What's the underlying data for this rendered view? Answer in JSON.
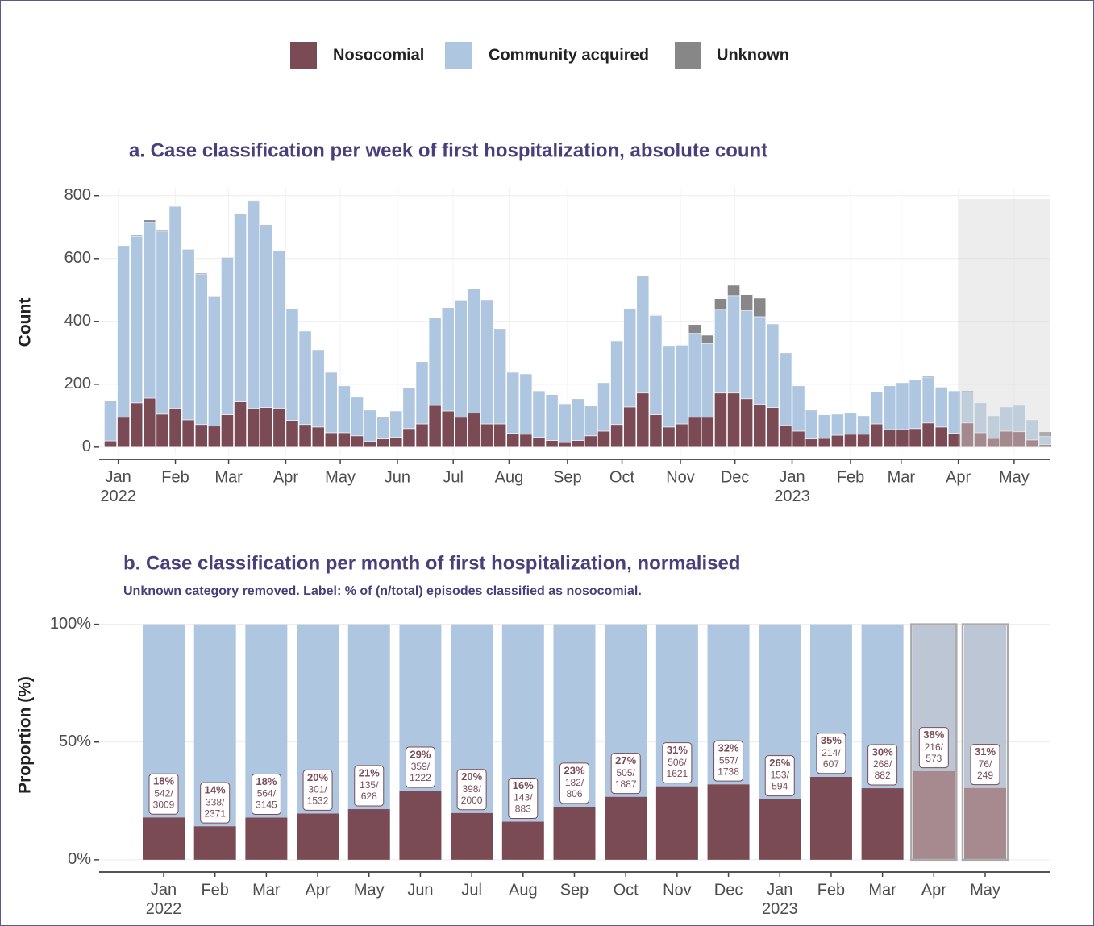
{
  "chart_data": [
    {
      "type": "stacked_bar",
      "title": "a. Case classification per week of first hospitalization, absolute count",
      "y_label": "Count",
      "categories": [
        null,
        null,
        null,
        null,
        null,
        null,
        null,
        null,
        null,
        null,
        null,
        null,
        null,
        null,
        null,
        null,
        null,
        null,
        null,
        null,
        null,
        null,
        null,
        null,
        null,
        null,
        null,
        null,
        null,
        null,
        null,
        null,
        null,
        null,
        null,
        null,
        null,
        null,
        null,
        null,
        null,
        null,
        null,
        null,
        null,
        null,
        null,
        null,
        null,
        null,
        null,
        null,
        null,
        null,
        null,
        null,
        null,
        null,
        null,
        null,
        null,
        null,
        null,
        null,
        null,
        null,
        null,
        null,
        null,
        null,
        null,
        null,
        null
      ],
      "series": [
        {
          "name": "Nosocomial",
          "color": "#7b4b55",
          "values": [
            20,
            95,
            141,
            156,
            105,
            123,
            87,
            72,
            67,
            103,
            144,
            123,
            126,
            123,
            85,
            72,
            64,
            46,
            46,
            36,
            18,
            26,
            31,
            59,
            74,
            133,
            115,
            95,
            108,
            74,
            74,
            44,
            41,
            31,
            21,
            15,
            21,
            36,
            51,
            72,
            128,
            172,
            103,
            64,
            74,
            95,
            95,
            172,
            172,
            154,
            136,
            126,
            69,
            51,
            26,
            28,
            38,
            41,
            41,
            74,
            56,
            56,
            59,
            77,
            64,
            44,
            77,
            46,
            28,
            51,
            49,
            23,
            8
          ]
        },
        {
          "name": "Community acquired",
          "color": "#aec6e0",
          "values": [
            129,
            546,
            530,
            559,
            582,
            643,
            542,
            479,
            413,
            500,
            600,
            659,
            579,
            503,
            356,
            297,
            246,
            192,
            149,
            123,
            100,
            71,
            84,
            131,
            198,
            280,
            329,
            372,
            397,
            395,
            303,
            194,
            192,
            148,
            146,
            123,
            133,
            95,
            154,
            266,
            311,
            374,
            316,
            259,
            250,
            267,
            235,
            264,
            310,
            280,
            279,
            266,
            231,
            144,
            92,
            75,
            67,
            67,
            59,
            103,
            139,
            149,
            154,
            146,
            126,
            135,
            98,
            95,
            72,
            77,
            84,
            64,
            26
          ]
        },
        {
          "name": "Unknown",
          "color": "#878787",
          "values": [
            0,
            0,
            3,
            8,
            5,
            3,
            2,
            3,
            2,
            2,
            0,
            3,
            3,
            0,
            0,
            0,
            0,
            0,
            0,
            0,
            0,
            0,
            0,
            0,
            0,
            0,
            0,
            2,
            0,
            0,
            0,
            0,
            0,
            0,
            0,
            0,
            0,
            0,
            0,
            0,
            2,
            0,
            2,
            0,
            2,
            28,
            26,
            36,
            33,
            51,
            59,
            0,
            0,
            0,
            0,
            0,
            0,
            2,
            0,
            0,
            0,
            0,
            0,
            3,
            2,
            0,
            4,
            0,
            0,
            0,
            0,
            0,
            15
          ]
        }
      ],
      "xlim": [
        -0.87,
        72.4
      ],
      "xticks": [
        {
          "value": 0.6,
          "label": "Jan\n2022"
        },
        {
          "value": 5.0,
          "label": "Feb"
        },
        {
          "value": 9.1,
          "label": "Mar"
        },
        {
          "value": 13.5,
          "label": "Apr"
        },
        {
          "value": 17.7,
          "label": "May"
        },
        {
          "value": 22.1,
          "label": "Jun"
        },
        {
          "value": 26.4,
          "label": "Jul"
        },
        {
          "value": 30.7,
          "label": "Aug"
        },
        {
          "value": 35.2,
          "label": "Sep"
        },
        {
          "value": 39.4,
          "label": "Oct"
        },
        {
          "value": 43.9,
          "label": "Nov"
        },
        {
          "value": 48.1,
          "label": "Dec"
        },
        {
          "value": 52.5,
          "label": "Jan\n2023"
        },
        {
          "value": 57.0,
          "label": "Feb"
        },
        {
          "value": 60.9,
          "label": "Mar"
        },
        {
          "value": 65.3,
          "label": "Apr"
        },
        {
          "value": 69.6,
          "label": "May"
        }
      ],
      "ylim": [
        -26,
        825
      ],
      "yticks": [
        0,
        200,
        400,
        600,
        800
      ],
      "shaded_xlim": [
        65.3,
        72.4
      ],
      "grid": true
    },
    {
      "type": "stacked_bar_percent",
      "title": "b. Case classification per month of first hospitalization, normalised",
      "subtitle": "Unknown category removed. Label: % of (n/total) episodes classified as nosocomial.",
      "y_label": "Proportion (%)",
      "categories": [
        "Jan\n2022",
        "Feb",
        "Mar",
        "Apr",
        "May",
        "Jun",
        "Jul",
        "Aug",
        "Sep",
        "Oct",
        "Nov",
        "Dec",
        "Jan\n2023",
        "Feb",
        "Mar",
        "Apr",
        "May"
      ],
      "series": [
        {
          "color": "#7b4b55",
          "values": [
            18.01,
            14.26,
            17.93,
            19.65,
            21.5,
            29.38,
            19.9,
            16.19,
            22.58,
            26.76,
            31.22,
            32.05,
            25.76,
            35.26,
            30.39,
            37.7,
            30.52
          ],
          "value_labels": [
            "18%",
            "14%",
            "18%",
            "20%",
            "21%",
            "29%",
            "20%",
            "16%",
            "23%",
            "27%",
            "31%",
            "32%",
            "26%",
            "35%",
            "30%",
            "38%",
            "31%"
          ],
          "n_labels": [
            "542/",
            "338/",
            "564/",
            "301/",
            "135/",
            "359/",
            "398/",
            "143/",
            "182/",
            "505/",
            "506/",
            "557/",
            "153/",
            "214/",
            "268/",
            "216/",
            "76/"
          ],
          "totals": [
            3009,
            2371,
            3145,
            1532,
            628,
            1222,
            2000,
            883,
            806,
            1887,
            1621,
            1738,
            594,
            607,
            882,
            573,
            249
          ]
        },
        {
          "color": "#aec6e0",
          "values": [
            81.99,
            85.74,
            82.07,
            80.35,
            78.5,
            70.62,
            80.1,
            83.81,
            77.42,
            73.24,
            68.78,
            67.95,
            74.24,
            64.74,
            69.61,
            62.3,
            69.48
          ]
        }
      ],
      "faded": [
        false,
        false,
        false,
        false,
        false,
        false,
        false,
        false,
        false,
        false,
        false,
        false,
        false,
        false,
        false,
        true,
        true
      ],
      "ylim": [
        -4.5,
        105
      ],
      "yticks": [
        {
          "value": 0,
          "label": "0%"
        },
        {
          "value": 50,
          "label": "50%"
        },
        {
          "value": 100,
          "label": "100%"
        }
      ],
      "grid": true
    }
  ]
}
